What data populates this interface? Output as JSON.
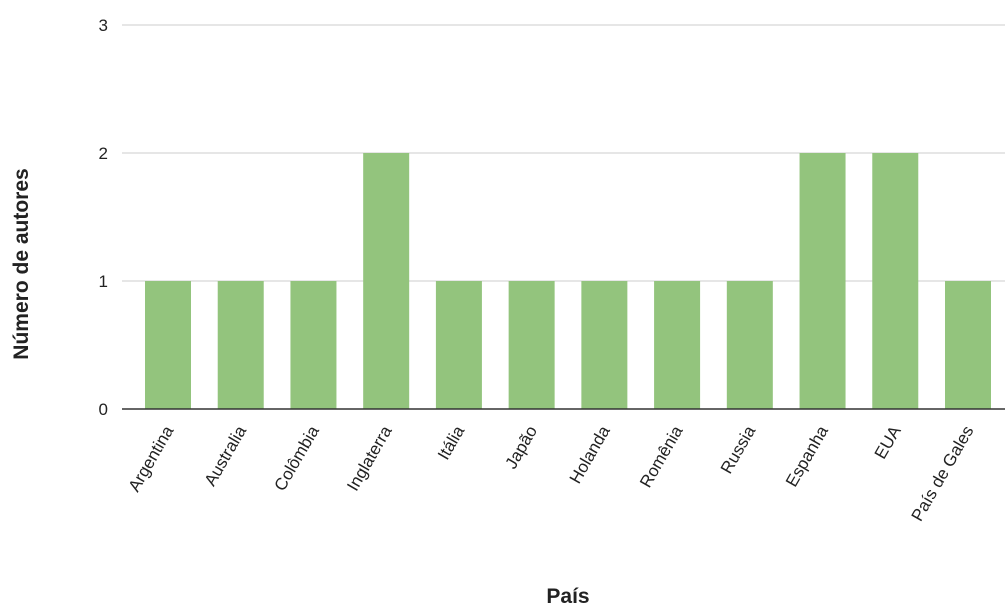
{
  "chart_data": {
    "type": "bar",
    "title": "",
    "xlabel": "País",
    "ylabel": "Número de autores",
    "categories": [
      "Argentina",
      "Australia",
      "Colômbia",
      "Inglaterra",
      "Itália",
      "Japão",
      "Holanda",
      "Romênia",
      "Russia",
      "Espanha",
      "EUA",
      "País de Gales"
    ],
    "values": [
      1,
      1,
      1,
      2,
      1,
      1,
      1,
      1,
      1,
      2,
      2,
      1
    ],
    "ylim": [
      0,
      3
    ],
    "yticks": [
      0,
      1,
      2,
      3
    ],
    "grid": true,
    "legend": "none",
    "bar_color": "#93c47d"
  }
}
